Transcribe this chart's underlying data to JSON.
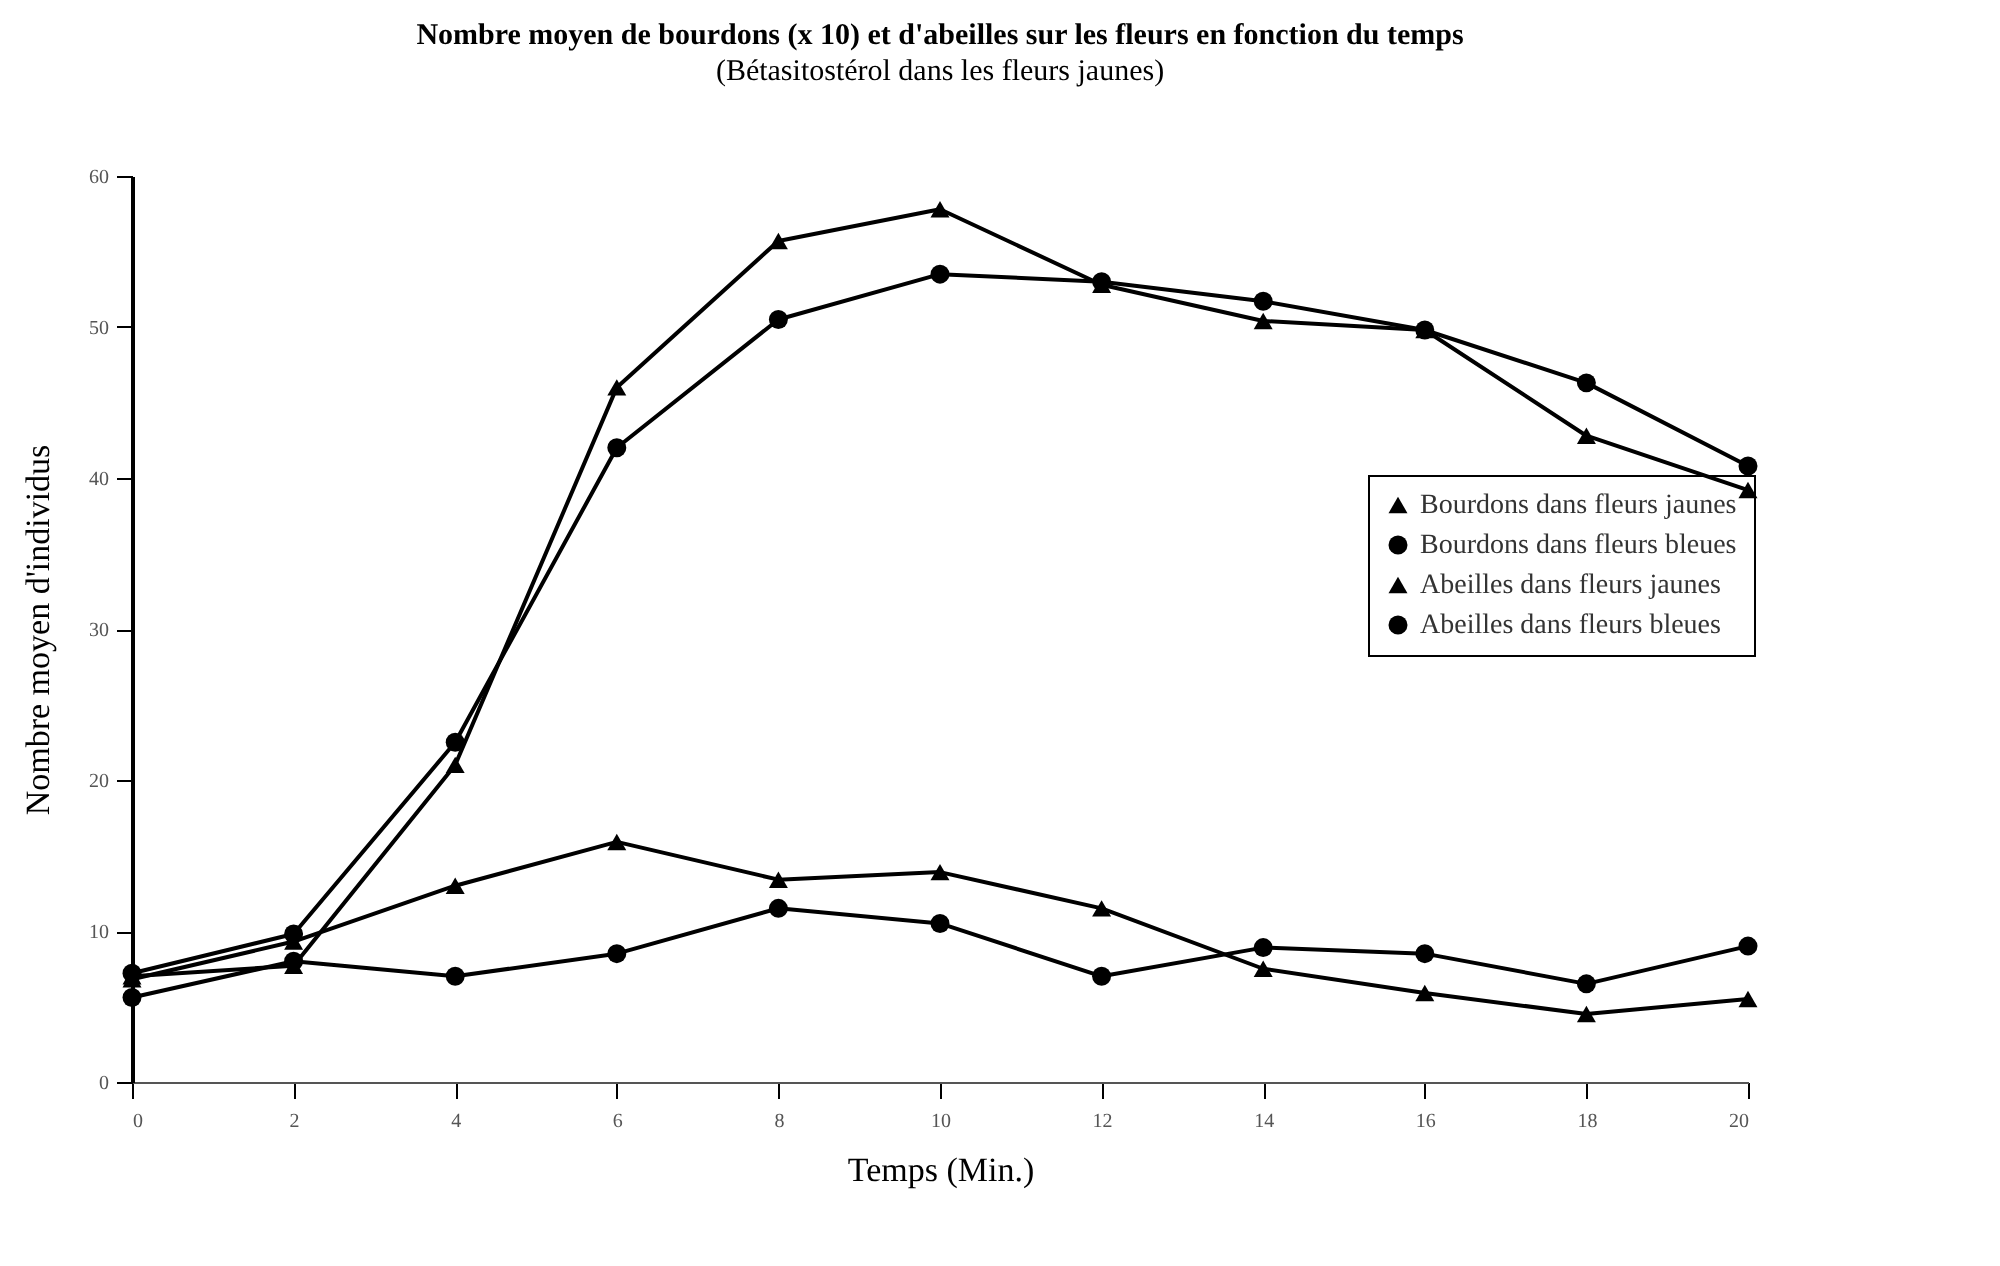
{
  "chart_data": {
    "type": "line",
    "title": "Nombre moyen de bourdons (x 10) et d'abeilles sur les fleurs en fonction du temps",
    "subtitle": "(Bétasitostérol dans les fleurs jaunes)",
    "xlabel": "Temps (Min.)",
    "ylabel": "Nombre moyen d'individus",
    "x": [
      0,
      2,
      4,
      6,
      8,
      10,
      12,
      14,
      16,
      18,
      20
    ],
    "series": [
      {
        "name": "Bourdons dans fleurs jaunes",
        "color": "#000000",
        "marker": "triangle",
        "values": [
          6.8,
          9.3,
          13,
          15.9,
          13.4,
          13.9,
          11.5,
          7.5,
          5.9,
          4.5,
          5.5
        ]
      },
      {
        "name": "Bourdons dans fleurs bleues",
        "color": "#000000",
        "marker": "circle",
        "values": [
          5.6,
          8,
          7,
          8.5,
          11.5,
          10.5,
          7,
          8.9,
          8.5,
          6.5,
          9
        ]
      },
      {
        "name": "Abeilles dans fleurs jaunes",
        "color": "#000000",
        "marker": "triangle",
        "values": [
          7,
          7.7,
          21,
          46,
          55.7,
          57.8,
          52.8,
          50.4,
          49.8,
          42.8,
          39.2
        ]
      },
      {
        "name": "Abeilles dans fleurs bleues",
        "color": "#000000",
        "marker": "circle",
        "values": [
          7.2,
          9.8,
          22.5,
          42,
          50.5,
          53.5,
          53,
          51.7,
          49.8,
          46.3,
          40.8
        ]
      }
    ],
    "xlim": [
      0,
      20
    ],
    "xticks": [
      0,
      2,
      4,
      6,
      8,
      10,
      12,
      14,
      16,
      18,
      20
    ],
    "ylim": [
      0,
      60
    ],
    "yticks": [
      0,
      10,
      20,
      30,
      40,
      50,
      60
    ],
    "grid": false,
    "legend": "right"
  }
}
